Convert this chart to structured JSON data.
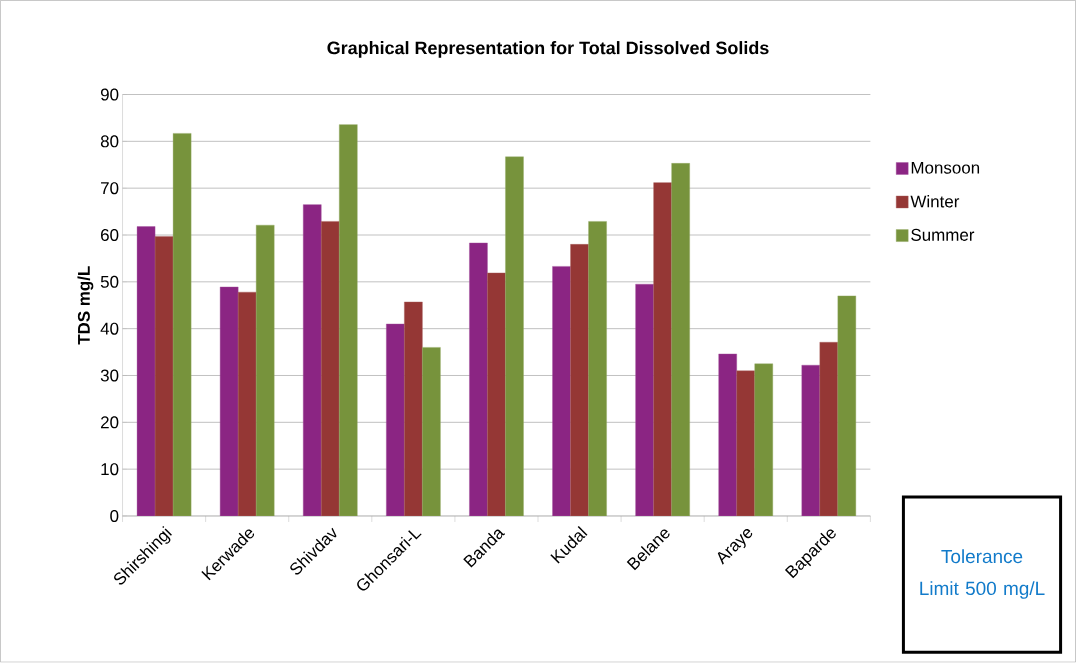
{
  "chart_data": {
    "type": "bar",
    "title": "Graphical Representation for  Total Dissolved Solids",
    "ylabel": "TDS mg/L",
    "categories": [
      "Shirshingi",
      "Kerwade",
      "Shivdav",
      "Ghonsari-L",
      "Banda",
      "Kudal",
      "Belane",
      "Araye",
      "Baparde"
    ],
    "series": [
      {
        "name": "Monsoon",
        "color": "#8b2583",
        "values": [
          61.8,
          48.9,
          66.5,
          41.0,
          58.3,
          53.3,
          49.5,
          34.6,
          32.2
        ]
      },
      {
        "name": "Winter",
        "color": "#953735",
        "values": [
          59.7,
          47.8,
          62.9,
          45.7,
          51.9,
          58.0,
          71.2,
          31.0,
          37.1
        ]
      },
      {
        "name": "Summer",
        "color": "#77933c",
        "values": [
          81.7,
          62.1,
          83.6,
          36.0,
          76.7,
          62.9,
          75.3,
          32.5,
          47.0
        ]
      }
    ],
    "ylim": [
      0,
      90
    ],
    "yticks": [
      0,
      10,
      20,
      30,
      40,
      50,
      60,
      70,
      80,
      90
    ],
    "grid": "y",
    "legend": "right",
    "annotations": [
      "Tolerance Limit 500 mg/L"
    ]
  }
}
